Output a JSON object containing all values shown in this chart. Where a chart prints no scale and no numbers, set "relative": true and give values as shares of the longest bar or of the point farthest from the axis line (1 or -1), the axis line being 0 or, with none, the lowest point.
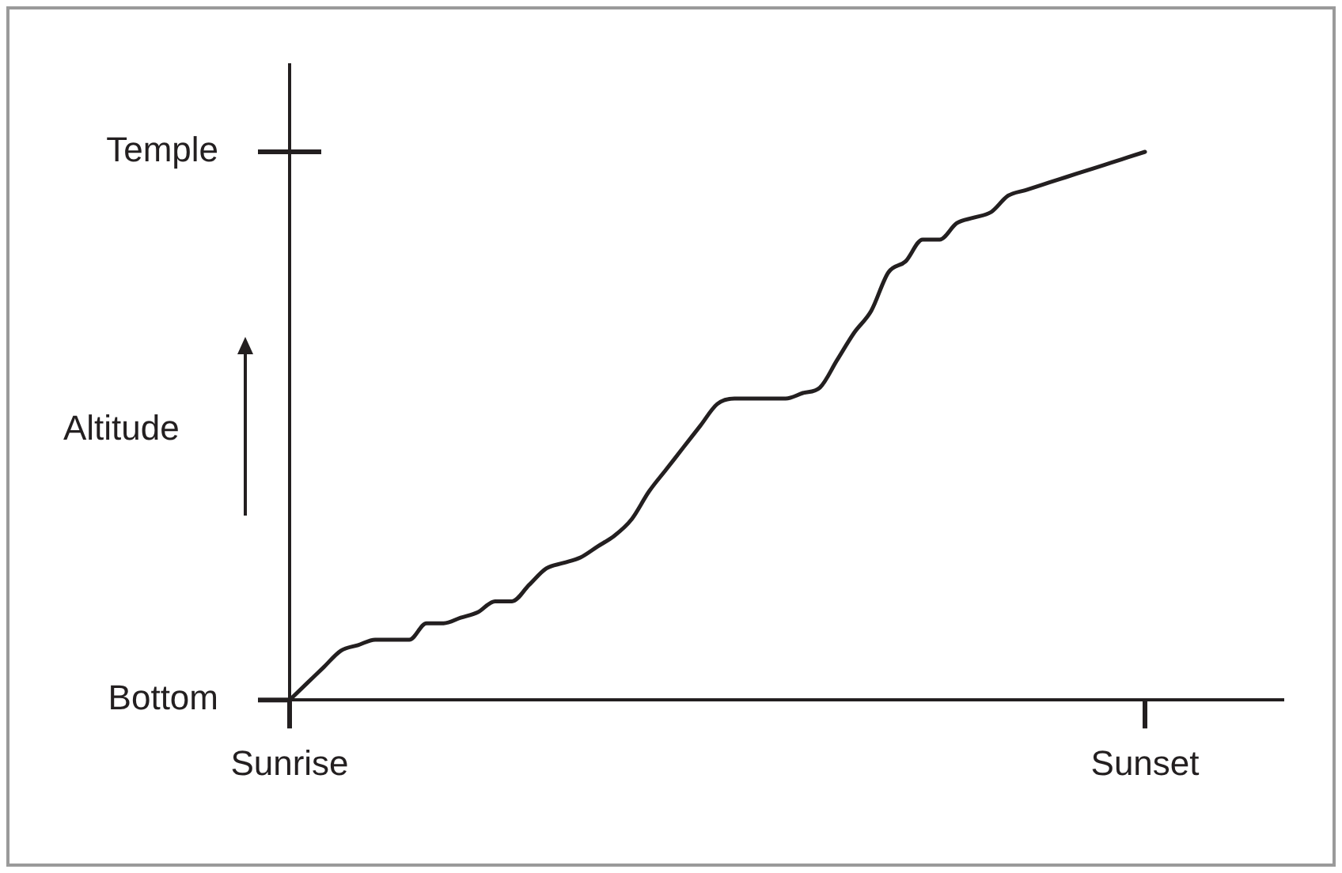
{
  "chart_data": {
    "type": "line",
    "relative": true,
    "ylabel": "Altitude",
    "color": "#231f20",
    "marker": "none",
    "line_style": "solid",
    "legend": false,
    "categories": [
      "Sunrise",
      null,
      null,
      null,
      null,
      null,
      null,
      null,
      null,
      null,
      null,
      null,
      null,
      null,
      null,
      null,
      null,
      null,
      null,
      null,
      null,
      null,
      null,
      null,
      null,
      null,
      null,
      null,
      null,
      null,
      null,
      null,
      null,
      null,
      null,
      null,
      null,
      null,
      null,
      null,
      null,
      null,
      null,
      null,
      null,
      null,
      null,
      null,
      null,
      null,
      "Sunset",
      null,
      null,
      null,
      null,
      null,
      null,
      null,
      null
    ],
    "values": [
      0,
      0.03,
      0.06,
      0.09,
      0.1,
      0.11,
      0.11,
      0.11,
      0.14,
      0.14,
      0.15,
      0.16,
      0.18,
      0.18,
      0.21,
      0.24,
      0.25,
      0.26,
      0.28,
      0.3,
      0.33,
      0.38,
      0.42,
      0.46,
      0.5,
      0.54,
      0.55,
      0.55,
      0.55,
      0.55,
      0.56,
      0.57,
      0.62,
      0.67,
      0.71,
      0.78,
      0.8,
      0.84,
      0.84,
      0.87,
      0.88,
      0.89,
      0.92,
      0.93,
      0.94,
      0.95,
      0.96,
      0.97,
      0.98,
      0.99,
      1,
      null,
      null,
      null,
      null,
      null,
      null,
      null,
      null
    ],
    "annotations": [
      "Temple",
      "Bottom"
    ]
  }
}
